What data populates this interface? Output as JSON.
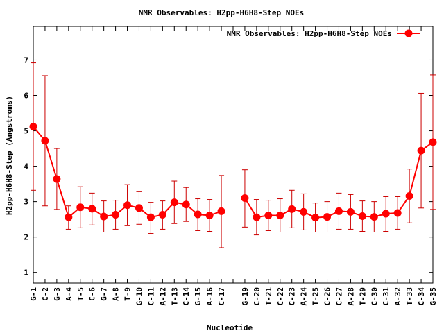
{
  "chart_data": {
    "type": "line",
    "title": "NMR Observables: H2pp-H6H8-Step NOEs",
    "xlabel": "Nucleotide",
    "ylabel": "H2pp-H6H8-Step (Angstroms)",
    "ylim": [
      0.7,
      7.95
    ],
    "yticks": [
      1,
      2,
      3,
      4,
      5,
      6,
      7
    ],
    "grid": false,
    "legend_position": "top-right",
    "colors": {
      "series": "#ff0000",
      "errorbar": "#cc0000",
      "axis": "#000000"
    },
    "series": [
      {
        "name": "NMR Observables: H2pp-H6H8-Step NOEs",
        "points": [
          {
            "label": "G-1",
            "y": 5.12,
            "err_low": 3.32,
            "err_high": 6.92
          },
          {
            "label": "C-2",
            "y": 4.72,
            "err_low": 2.88,
            "err_high": 6.56
          },
          {
            "label": "G-3",
            "y": 3.64,
            "err_low": 2.78,
            "err_high": 4.5
          },
          {
            "label": "A-4",
            "y": 2.56,
            "err_low": 2.22,
            "err_high": 2.88
          },
          {
            "label": "T-5",
            "y": 2.84,
            "err_low": 2.26,
            "err_high": 3.42
          },
          {
            "label": "C-6",
            "y": 2.8,
            "err_low": 2.34,
            "err_high": 3.24
          },
          {
            "label": "G-7",
            "y": 2.58,
            "err_low": 2.14,
            "err_high": 3.02
          },
          {
            "label": "A-8",
            "y": 2.63,
            "err_low": 2.22,
            "err_high": 3.04
          },
          {
            "label": "T-9",
            "y": 2.9,
            "err_low": 2.32,
            "err_high": 3.48
          },
          {
            "label": "G-10",
            "y": 2.82,
            "err_low": 2.36,
            "err_high": 3.28
          },
          {
            "label": "C-11",
            "y": 2.56,
            "err_low": 2.1,
            "err_high": 2.98
          },
          {
            "label": "A-12",
            "y": 2.63,
            "err_low": 2.22,
            "err_high": 3.02
          },
          {
            "label": "T-13",
            "y": 2.98,
            "err_low": 2.38,
            "err_high": 3.58
          },
          {
            "label": "C-14",
            "y": 2.92,
            "err_low": 2.44,
            "err_high": 3.4
          },
          {
            "label": "G-15",
            "y": 2.64,
            "err_low": 2.18,
            "err_high": 3.08
          },
          {
            "label": "A-16",
            "y": 2.61,
            "err_low": 2.16,
            "err_high": 3.06
          },
          {
            "label": "C-17",
            "y": 2.73,
            "err_low": 1.7,
            "err_high": 3.74
          },
          {
            "label": "",
            "y": null,
            "err_low": null,
            "err_high": null
          },
          {
            "label": "G-19",
            "y": 3.1,
            "err_low": 2.28,
            "err_high": 3.9
          },
          {
            "label": "C-20",
            "y": 2.56,
            "err_low": 2.06,
            "err_high": 3.06
          },
          {
            "label": "T-21",
            "y": 2.61,
            "err_low": 2.18,
            "err_high": 3.04
          },
          {
            "label": "C-22",
            "y": 2.61,
            "err_low": 2.14,
            "err_high": 3.08
          },
          {
            "label": "C-23",
            "y": 2.79,
            "err_low": 2.26,
            "err_high": 3.32
          },
          {
            "label": "A-24",
            "y": 2.71,
            "err_low": 2.2,
            "err_high": 3.22
          },
          {
            "label": "T-25",
            "y": 2.55,
            "err_low": 2.14,
            "err_high": 2.96
          },
          {
            "label": "C-26",
            "y": 2.57,
            "err_low": 2.14,
            "err_high": 3.0
          },
          {
            "label": "C-27",
            "y": 2.73,
            "err_low": 2.22,
            "err_high": 3.24
          },
          {
            "label": "A-28",
            "y": 2.71,
            "err_low": 2.22,
            "err_high": 3.2
          },
          {
            "label": "T-29",
            "y": 2.59,
            "err_low": 2.16,
            "err_high": 3.02
          },
          {
            "label": "C-30",
            "y": 2.57,
            "err_low": 2.14,
            "err_high": 3.0
          },
          {
            "label": "C-31",
            "y": 2.66,
            "err_low": 2.16,
            "err_high": 3.14
          },
          {
            "label": "A-32",
            "y": 2.68,
            "err_low": 2.22,
            "err_high": 3.14
          },
          {
            "label": "T-33",
            "y": 3.16,
            "err_low": 2.4,
            "err_high": 3.92
          },
          {
            "label": "C-34",
            "y": 4.44,
            "err_low": 2.82,
            "err_high": 6.06
          },
          {
            "label": "G-35",
            "y": 4.68,
            "err_low": 2.78,
            "err_high": 6.58
          }
        ]
      }
    ]
  }
}
